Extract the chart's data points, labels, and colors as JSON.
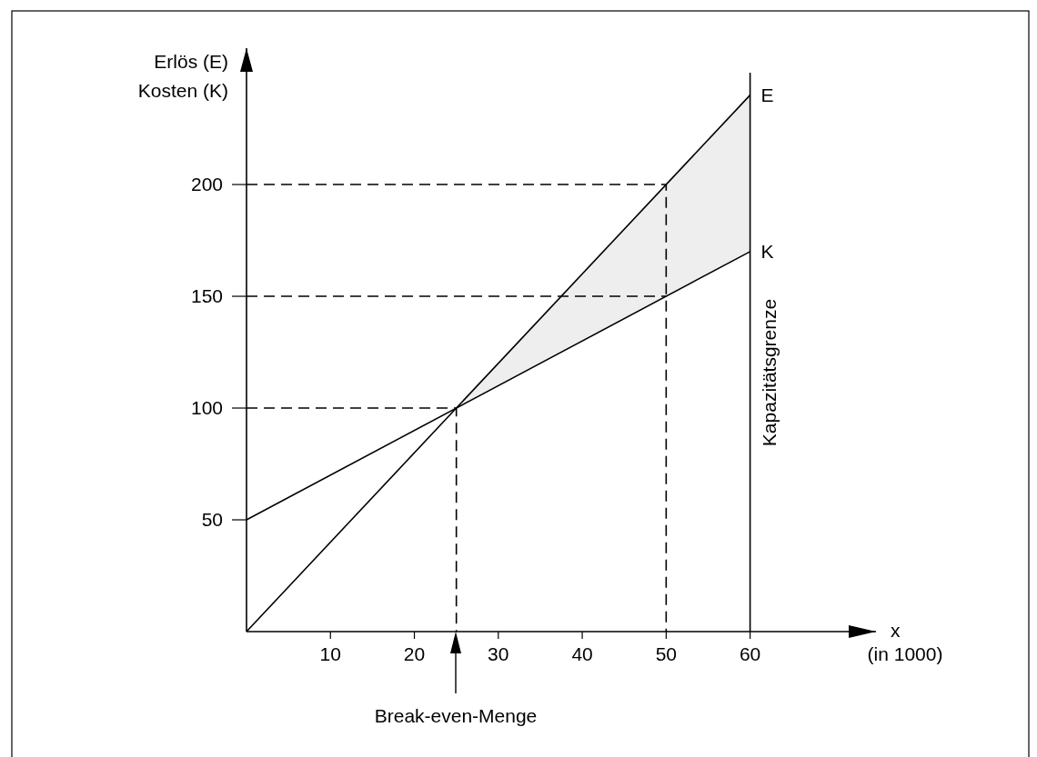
{
  "chart_data": {
    "type": "line",
    "xlabel": "x\n(in 1000)",
    "ylabel": "Erlös (E)\nKosten (K)",
    "xlim": [
      0,
      75
    ],
    "ylim": [
      0,
      261
    ],
    "xticks": [
      10,
      20,
      30,
      40,
      50,
      60
    ],
    "yticks": [
      50,
      100,
      150,
      200
    ],
    "grid": false,
    "marker": "none",
    "series": [
      {
        "name": "E",
        "color": "#000000",
        "x": [
          0,
          25,
          60
        ],
        "values": [
          0,
          100,
          240
        ],
        "lower": [
          null,
          100,
          170
        ],
        "upper": [
          null,
          100,
          240
        ]
      },
      {
        "name": "K",
        "color": "#000000",
        "x": [
          0,
          60
        ],
        "values": [
          50,
          170
        ]
      },
      {
        "color": "#000000",
        "line_style": "dashed",
        "x": [
          0,
          25,
          25
        ],
        "values": [
          100,
          100,
          0
        ]
      },
      {
        "color": "#000000",
        "line_style": "dashed",
        "x": [
          0,
          50
        ],
        "values": [
          150,
          150
        ]
      },
      {
        "color": "#000000",
        "line_style": "dashed",
        "x": [
          0,
          50,
          50
        ],
        "values": [
          200,
          200,
          0
        ]
      }
    ],
    "ref_lines": [
      {
        "axis": "x",
        "value": 60,
        "label": "Kapazitätsgrenze",
        "color": "#000000"
      }
    ],
    "annotations": [
      "Break-even-Menge"
    ]
  }
}
